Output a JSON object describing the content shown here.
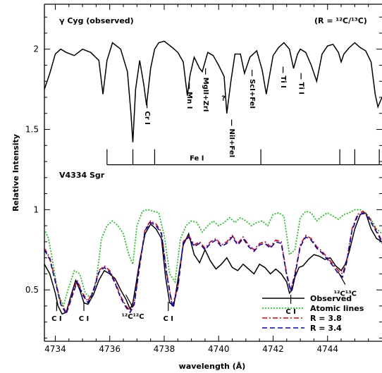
{
  "chart_data": {
    "type": "line",
    "xlabel": "wavelength (Å)",
    "ylabel": "Relative Intensity",
    "xlim": [
      4733.6,
      4746.0
    ],
    "ylim": [
      0.18,
      2.28
    ],
    "xticks": [
      4734,
      4736,
      4738,
      4740,
      4742,
      4744
    ],
    "yticks": [
      0.5,
      1,
      1.5,
      2
    ],
    "ytick_labels": [
      "0.5",
      "1",
      "1.5",
      "2"
    ],
    "top_title": "γ Cyg (observed)",
    "top_ratio": "(R = ¹²C/¹³C)",
    "bottom_title": "V4334 Sgr",
    "legend_position": "bottom-right",
    "legend": [
      {
        "label": "Observed",
        "color": "#000000",
        "dash": ""
      },
      {
        "label": "Atomic lines",
        "color": "#00cc00",
        "dash": "2,2"
      },
      {
        "label": "R = 3.8",
        "color": "#dd0000",
        "dash": "7,3,2,3"
      },
      {
        "label": "R = 3.4",
        "color": "#0000cc",
        "dash": "7,4"
      }
    ],
    "series": [
      {
        "name": "γ Cyg (observed)",
        "color": "#000000",
        "dash": "",
        "x": [
          4733.6,
          4733.8,
          4734.0,
          4734.2,
          4734.4,
          4734.7,
          4735.0,
          4735.3,
          4735.6,
          4735.75,
          4735.9,
          4736.1,
          4736.4,
          4736.65,
          4736.78,
          4736.85,
          4736.95,
          4737.1,
          4737.25,
          4737.35,
          4737.5,
          4737.65,
          4737.8,
          4738.0,
          4738.3,
          4738.5,
          4738.7,
          4738.85,
          4738.95,
          4739.1,
          4739.3,
          4739.4,
          4739.6,
          4739.8,
          4740.0,
          4740.2,
          4740.3,
          4740.45,
          4740.6,
          4740.8,
          4740.95,
          4741.15,
          4741.4,
          4741.6,
          4741.75,
          4742.0,
          4742.2,
          4742.4,
          4742.6,
          4742.75,
          4742.9,
          4743.0,
          4743.2,
          4743.4,
          4743.6,
          4743.8,
          4744.0,
          4744.2,
          4744.4,
          4744.5,
          4744.6,
          4744.8,
          4745.0,
          4745.2,
          4745.4,
          4745.6,
          4745.75,
          4745.85,
          4746.0
        ],
        "y": [
          1.75,
          1.85,
          1.97,
          2.0,
          1.98,
          1.96,
          2.0,
          1.98,
          1.93,
          1.72,
          1.93,
          2.04,
          2.0,
          1.86,
          1.6,
          1.42,
          1.75,
          1.93,
          1.78,
          1.65,
          1.88,
          2.0,
          2.04,
          2.05,
          2.01,
          1.98,
          1.92,
          1.71,
          1.84,
          1.95,
          1.88,
          1.86,
          1.98,
          1.96,
          1.9,
          1.83,
          1.6,
          1.8,
          1.97,
          1.97,
          1.85,
          1.95,
          1.99,
          1.87,
          1.72,
          1.96,
          2.01,
          2.04,
          2.0,
          1.88,
          1.97,
          2.0,
          1.98,
          1.9,
          1.8,
          1.97,
          2.02,
          2.03,
          1.98,
          1.92,
          1.97,
          2.01,
          2.04,
          2.01,
          1.99,
          1.92,
          1.72,
          1.64,
          1.7
        ]
      },
      {
        "name": "Observed",
        "color": "#000000",
        "dash": "",
        "x": [
          4733.6,
          4733.8,
          4734.0,
          4734.1,
          4734.25,
          4734.4,
          4734.55,
          4734.75,
          4734.9,
          4735.05,
          4735.2,
          4735.4,
          4735.6,
          4735.8,
          4736.0,
          4736.2,
          4736.4,
          4736.6,
          4736.75,
          4736.85,
          4736.95,
          4737.1,
          4737.3,
          4737.5,
          4737.7,
          4737.9,
          4738.05,
          4738.2,
          4738.35,
          4738.5,
          4738.7,
          4738.9,
          4739.1,
          4739.3,
          4739.5,
          4739.7,
          4739.9,
          4740.1,
          4740.3,
          4740.5,
          4740.7,
          4740.9,
          4741.1,
          4741.3,
          4741.5,
          4741.7,
          4741.9,
          4742.1,
          4742.3,
          4742.5,
          4742.6,
          4742.7,
          4742.8,
          4742.95,
          4743.1,
          4743.3,
          4743.5,
          4743.7,
          4743.9,
          4744.1,
          4744.3,
          4744.5,
          4744.65,
          4744.8,
          4745.0,
          4745.2,
          4745.4,
          4745.6,
          4745.8,
          4746.0
        ],
        "y": [
          0.66,
          0.6,
          0.48,
          0.4,
          0.35,
          0.36,
          0.45,
          0.56,
          0.5,
          0.42,
          0.41,
          0.47,
          0.56,
          0.62,
          0.6,
          0.57,
          0.5,
          0.44,
          0.38,
          0.42,
          0.52,
          0.68,
          0.85,
          0.91,
          0.88,
          0.82,
          0.58,
          0.42,
          0.4,
          0.56,
          0.78,
          0.85,
          0.72,
          0.67,
          0.75,
          0.68,
          0.63,
          0.66,
          0.7,
          0.64,
          0.62,
          0.66,
          0.63,
          0.6,
          0.66,
          0.64,
          0.6,
          0.63,
          0.6,
          0.55,
          0.48,
          0.5,
          0.58,
          0.64,
          0.65,
          0.69,
          0.72,
          0.71,
          0.69,
          0.7,
          0.65,
          0.62,
          0.66,
          0.74,
          0.88,
          0.97,
          0.98,
          0.88,
          0.82,
          0.8
        ]
      },
      {
        "name": "Atomic lines",
        "color": "#00cc00",
        "dash": "2,2",
        "x": [
          4733.6,
          4733.75,
          4733.9,
          4734.1,
          4734.3,
          4734.5,
          4734.7,
          4734.9,
          4735.1,
          4735.3,
          4735.5,
          4735.7,
          4735.9,
          4736.1,
          4736.3,
          4736.5,
          4736.7,
          4736.85,
          4737.0,
          4737.2,
          4737.4,
          4737.6,
          4737.8,
          4738.0,
          4738.2,
          4738.4,
          4738.6,
          4738.8,
          4739.0,
          4739.2,
          4739.4,
          4739.6,
          4739.8,
          4740.0,
          4740.2,
          4740.4,
          4740.6,
          4740.8,
          4741.0,
          4741.2,
          4741.4,
          4741.6,
          4741.8,
          4742.0,
          4742.2,
          4742.4,
          4742.6,
          4742.8,
          4743.0,
          4743.2,
          4743.4,
          4743.6,
          4743.8,
          4744.0,
          4744.2,
          4744.4,
          4744.6,
          4744.8,
          4745.0,
          4745.2,
          4745.4,
          4745.6,
          4745.8,
          4746.0
        ],
        "y": [
          0.88,
          0.82,
          0.68,
          0.48,
          0.4,
          0.52,
          0.62,
          0.6,
          0.48,
          0.45,
          0.55,
          0.82,
          0.9,
          0.93,
          0.9,
          0.85,
          0.72,
          0.66,
          0.9,
          0.99,
          1.0,
          0.99,
          0.98,
          0.84,
          0.6,
          0.55,
          0.82,
          0.9,
          0.93,
          0.92,
          0.86,
          0.9,
          0.93,
          0.9,
          0.92,
          0.95,
          0.92,
          0.95,
          0.93,
          0.9,
          0.92,
          0.93,
          0.9,
          0.97,
          0.98,
          0.96,
          0.72,
          0.75,
          0.95,
          0.99,
          0.98,
          0.93,
          0.96,
          0.98,
          0.96,
          0.94,
          0.97,
          0.98,
          1.0,
          1.0,
          0.98,
          0.94,
          0.88,
          0.85
        ]
      },
      {
        "name": "R = 3.8",
        "color": "#dd0000",
        "dash": "7,3,2,3",
        "x": [
          4733.6,
          4733.8,
          4734.0,
          4734.2,
          4734.4,
          4734.6,
          4734.8,
          4735.0,
          4735.2,
          4735.4,
          4735.6,
          4735.8,
          4736.0,
          4736.2,
          4736.4,
          4736.6,
          4736.75,
          4736.9,
          4737.1,
          4737.3,
          4737.5,
          4737.7,
          4737.9,
          4738.1,
          4738.3,
          4738.5,
          4738.7,
          4738.9,
          4739.1,
          4739.3,
          4739.5,
          4739.7,
          4739.9,
          4740.1,
          4740.3,
          4740.5,
          4740.7,
          4740.9,
          4741.1,
          4741.3,
          4741.5,
          4741.7,
          4741.9,
          4742.1,
          4742.3,
          4742.5,
          4742.65,
          4742.8,
          4743.0,
          4743.2,
          4743.4,
          4743.6,
          4743.8,
          4744.0,
          4744.2,
          4744.4,
          4744.55,
          4744.7,
          4744.9,
          4745.1,
          4745.3,
          4745.5,
          4745.7,
          4745.9,
          4746.0
        ],
        "y": [
          0.76,
          0.7,
          0.56,
          0.42,
          0.36,
          0.46,
          0.56,
          0.48,
          0.43,
          0.5,
          0.62,
          0.65,
          0.62,
          0.55,
          0.46,
          0.4,
          0.37,
          0.42,
          0.66,
          0.88,
          0.93,
          0.91,
          0.86,
          0.6,
          0.4,
          0.52,
          0.8,
          0.84,
          0.78,
          0.8,
          0.76,
          0.8,
          0.82,
          0.78,
          0.8,
          0.84,
          0.79,
          0.83,
          0.78,
          0.75,
          0.79,
          0.8,
          0.77,
          0.81,
          0.8,
          0.6,
          0.5,
          0.6,
          0.78,
          0.84,
          0.82,
          0.77,
          0.74,
          0.7,
          0.66,
          0.62,
          0.6,
          0.68,
          0.88,
          0.97,
          0.99,
          0.96,
          0.9,
          0.84,
          0.8
        ]
      },
      {
        "name": "R = 3.4",
        "color": "#0000cc",
        "dash": "7,4",
        "x": [
          4733.6,
          4733.8,
          4734.0,
          4734.2,
          4734.4,
          4734.6,
          4734.8,
          4735.0,
          4735.2,
          4735.4,
          4735.6,
          4735.8,
          4736.0,
          4736.2,
          4736.4,
          4736.6,
          4736.75,
          4736.9,
          4737.1,
          4737.3,
          4737.5,
          4737.7,
          4737.9,
          4738.1,
          4738.3,
          4738.5,
          4738.7,
          4738.9,
          4739.1,
          4739.3,
          4739.5,
          4739.7,
          4739.9,
          4740.1,
          4740.3,
          4740.5,
          4740.7,
          4740.9,
          4741.1,
          4741.3,
          4741.5,
          4741.7,
          4741.9,
          4742.1,
          4742.3,
          4742.5,
          4742.65,
          4742.8,
          4743.0,
          4743.2,
          4743.4,
          4743.6,
          4743.8,
          4744.0,
          4744.2,
          4744.4,
          4744.55,
          4744.7,
          4744.9,
          4745.1,
          4745.3,
          4745.5,
          4745.7,
          4745.9,
          4746.0
        ],
        "y": [
          0.75,
          0.69,
          0.55,
          0.41,
          0.35,
          0.45,
          0.55,
          0.47,
          0.42,
          0.49,
          0.61,
          0.64,
          0.61,
          0.54,
          0.45,
          0.39,
          0.36,
          0.41,
          0.65,
          0.87,
          0.92,
          0.9,
          0.85,
          0.59,
          0.39,
          0.51,
          0.79,
          0.83,
          0.77,
          0.79,
          0.75,
          0.79,
          0.81,
          0.77,
          0.79,
          0.83,
          0.78,
          0.82,
          0.77,
          0.74,
          0.78,
          0.79,
          0.76,
          0.8,
          0.79,
          0.59,
          0.49,
          0.59,
          0.77,
          0.83,
          0.81,
          0.76,
          0.73,
          0.69,
          0.65,
          0.6,
          0.58,
          0.67,
          0.87,
          0.96,
          0.98,
          0.95,
          0.89,
          0.83,
          0.79
        ]
      }
    ],
    "fe_bracket": {
      "label": "Fe I",
      "y": 1.28,
      "ticks": [
        4735.9,
        4736.85,
        4737.65,
        4741.55,
        4744.45,
        4745.0,
        4745.9
      ]
    },
    "line_ids": [
      {
        "text": "Cr I",
        "x": 4737.2
      },
      {
        "text": "Mn I",
        "x": 4738.75
      },
      {
        "text": "MgII+ZrI",
        "x": 4739.35
      },
      {
        "text": "NiI+FeI",
        "x": 4740.3
      },
      {
        "text": "ScI+FeI",
        "x": 4741.05
      },
      {
        "text": "Ti I",
        "x": 4742.2
      },
      {
        "text": "Ti I",
        "x": 4742.85
      }
    ],
    "question_mark": "?",
    "lower_ids": [
      {
        "text": "C I",
        "x": 4734.05
      },
      {
        "text": "C I",
        "x": 4735.05
      },
      {
        "text": "C I",
        "x": 4738.15
      },
      {
        "text": "C I",
        "x": 4742.65
      }
    ],
    "isotope_labels": [
      {
        "text": "¹²C¹²C",
        "x": 4736.85
      },
      {
        "text": "¹²C¹³C",
        "x": 4744.65
      }
    ]
  }
}
